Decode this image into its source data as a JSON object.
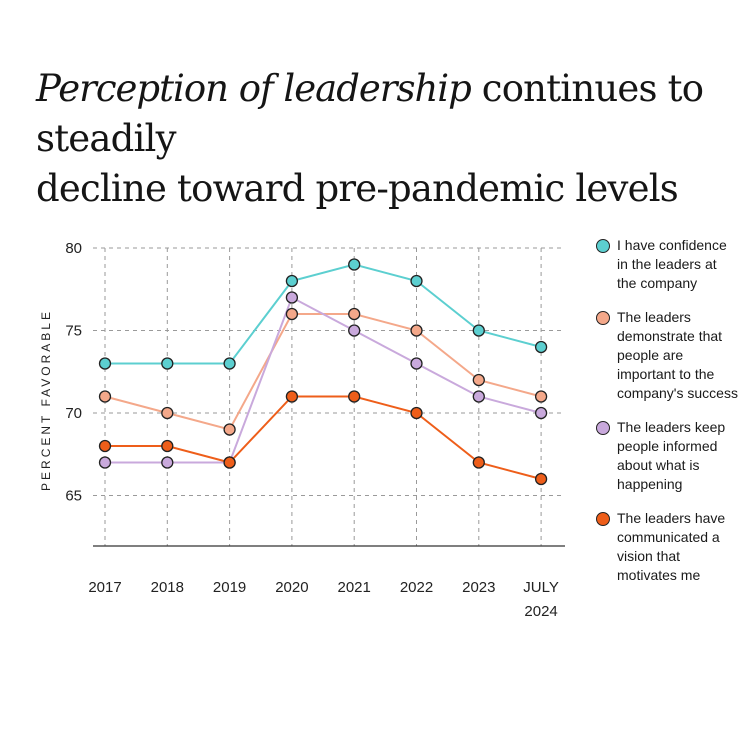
{
  "title": {
    "script_part": "Perception of leadership",
    "rest_line1": " continues to steadily",
    "line2": "decline toward pre-pandemic levels"
  },
  "chart_data": {
    "type": "line",
    "categories": [
      "2017",
      "2018",
      "2019",
      "2020",
      "2021",
      "2022",
      "2023",
      "JULY 2024"
    ],
    "ylabel": "PERCENT FAVORABLE",
    "ylim": [
      62,
      80
    ],
    "yticks": [
      65,
      70,
      75,
      80
    ],
    "grid": true,
    "legend_position": "right",
    "series": [
      {
        "name": "I have confidence in the leaders at the company",
        "color": "#5ccfd0",
        "values": [
          73,
          73,
          73,
          78,
          79,
          78,
          75,
          74
        ]
      },
      {
        "name": "The leaders demonstrate that people are important to the company's success",
        "color": "#f4a88a",
        "values": [
          71,
          70,
          69,
          76,
          76,
          75,
          72,
          71
        ]
      },
      {
        "name": "The leaders keep people informed about what is happening",
        "color": "#c9a9dc",
        "values": [
          67,
          67,
          67,
          77,
          75,
          73,
          71,
          70
        ]
      },
      {
        "name": "The leaders have communicated a vision that motivates me",
        "color": "#ee5e1a",
        "values": [
          68,
          68,
          67,
          71,
          71,
          70,
          67,
          66
        ]
      }
    ]
  }
}
